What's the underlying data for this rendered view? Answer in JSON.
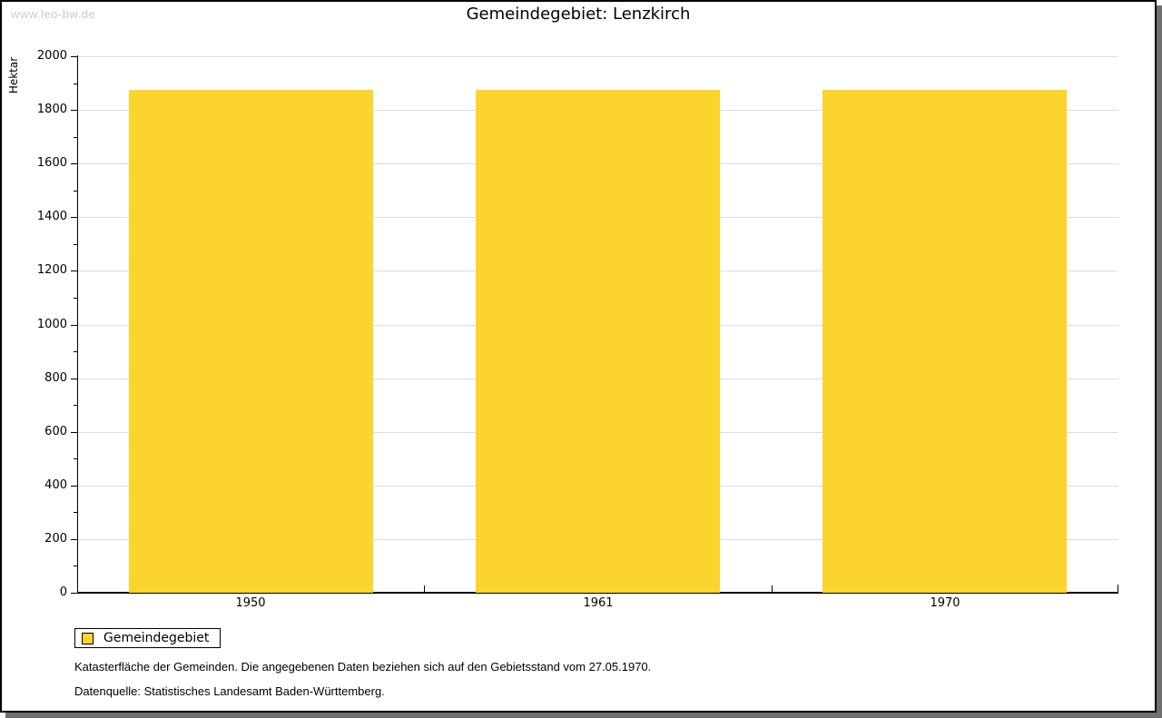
{
  "watermark": "www.leo-bw.de",
  "title": "Gemeindegebiet: Lenzkirch",
  "chart_data": {
    "type": "bar",
    "title": "Gemeindegebiet: Lenzkirch",
    "categories": [
      "1950",
      "1961",
      "1970"
    ],
    "series": [
      {
        "name": "Gemeindegebiet",
        "values": [
          1875,
          1875,
          1875
        ]
      }
    ],
    "xlabel": "",
    "ylabel": "Hektar",
    "ylim": [
      0,
      2000
    ],
    "y_major_step": 200,
    "y_minor_step": 100,
    "grid": true,
    "legend_position": "bottom-left",
    "bar_color": "#fcd42e"
  },
  "legend": {
    "items": [
      {
        "label": "Gemeindegebiet",
        "color": "#fcd42e"
      }
    ]
  },
  "footnotes": {
    "line1": "Katasterfläche der Gemeinden. Die angegebenen Daten beziehen sich auf den Gebietsstand vom 27.05.1970.",
    "line2": "Datenquelle: Statistisches Landesamt Baden-Württemberg."
  },
  "colors": {
    "bar": "#fcd42e",
    "gridline": "#dddddd",
    "axis": "#000000",
    "watermark": "#cbcbcb",
    "frame_shadow": "#707070"
  }
}
